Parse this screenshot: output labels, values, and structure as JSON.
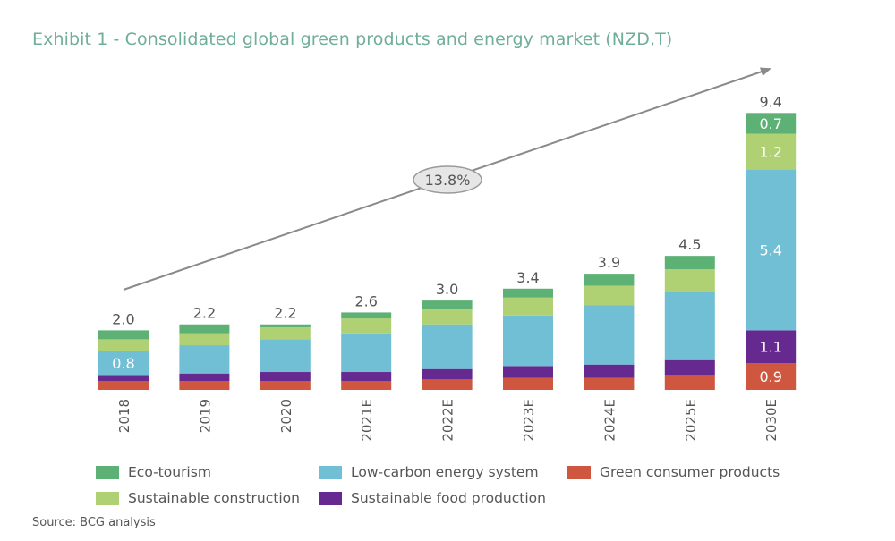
{
  "title": "Exhibit 1 - Consolidated global green products and energy market (NZD,T)",
  "source": "Source: BCG analysis",
  "chart_data": {
    "type": "bar",
    "stacked": true,
    "title": "Exhibit 1 - Consolidated global green products and energy market (NZD,T)",
    "categories": [
      "2018",
      "2019",
      "2020",
      "2021E",
      "2022E",
      "2023E",
      "2024E",
      "2025E",
      "2030E"
    ],
    "totals": [
      "2.0",
      "2.2",
      "2.2",
      "2.6",
      "3.0",
      "3.4",
      "3.9",
      "4.5",
      "9.4"
    ],
    "series": [
      {
        "name": "Green consumer products",
        "color": "#d0573f",
        "values": [
          0.3,
          0.3,
          0.3,
          0.3,
          0.35,
          0.4,
          0.4,
          0.5,
          0.9
        ]
      },
      {
        "name": "Sustainable food production",
        "color": "#66298f",
        "values": [
          0.2,
          0.25,
          0.3,
          0.3,
          0.35,
          0.4,
          0.45,
          0.5,
          1.1
        ]
      },
      {
        "name": "Low-carbon energy system",
        "color": "#71bfd5",
        "values": [
          0.8,
          0.95,
          1.1,
          1.3,
          1.5,
          1.7,
          2.0,
          2.3,
          5.4
        ]
      },
      {
        "name": "Sustainable construction",
        "color": "#afd173",
        "values": [
          0.4,
          0.4,
          0.4,
          0.5,
          0.5,
          0.6,
          0.65,
          0.75,
          1.2
        ]
      },
      {
        "name": "Eco-tourism",
        "color": "#5eb174",
        "values": [
          0.3,
          0.3,
          0.1,
          0.2,
          0.3,
          0.3,
          0.4,
          0.45,
          0.7
        ]
      }
    ],
    "segment_labels": [
      {
        "category": "2018",
        "series": "Low-carbon energy system",
        "text": "0.8"
      },
      {
        "category": "2030E",
        "series": "Green consumer products",
        "text": "0.9"
      },
      {
        "category": "2030E",
        "series": "Sustainable food production",
        "text": "1.1"
      },
      {
        "category": "2030E",
        "series": "Low-carbon energy system",
        "text": "5.4"
      },
      {
        "category": "2030E",
        "series": "Sustainable construction",
        "text": "1.2"
      },
      {
        "category": "2030E",
        "series": "Eco-tourism",
        "text": "0.7"
      }
    ],
    "annotation": {
      "type": "growth-arrow",
      "from": "2018",
      "to": "2030E",
      "text": "13.8%"
    },
    "legend_order": [
      "Eco-tourism",
      "Low-carbon energy system",
      "Green consumer products",
      "Sustainable construction",
      "Sustainable food production"
    ],
    "legend_placement": "bottom",
    "grid": false,
    "yaxis_visible": false
  }
}
